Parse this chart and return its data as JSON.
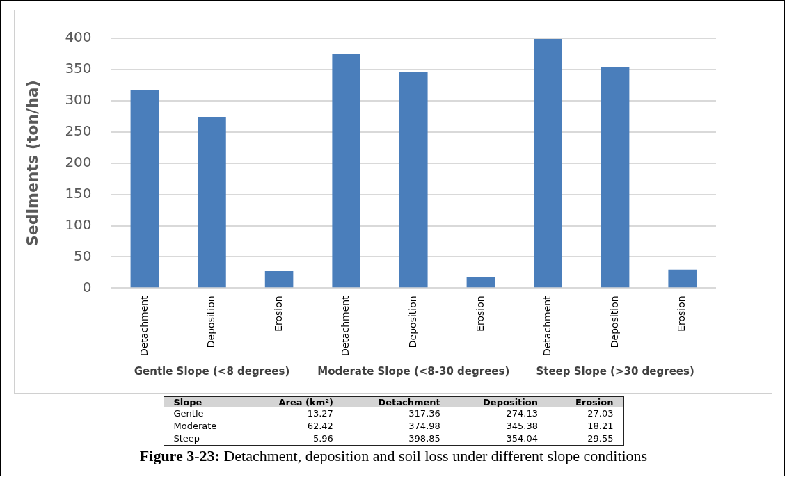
{
  "chart_data": [
    {
      "type": "bar",
      "ylabel": "Sediments (ton/ha)",
      "categories": [
        "Detachment",
        "Deposition",
        "Erosion",
        "Detachment",
        "Deposition",
        "Erosion",
        "Detachment",
        "Deposition",
        "Erosion"
      ],
      "values": [
        317.36,
        274.13,
        27.03,
        374.98,
        345.38,
        18.21,
        398.85,
        354.04,
        29.55
      ],
      "color": "#4a7ebb",
      "ylim": [
        0,
        400
      ],
      "yticks": [
        0,
        50,
        100,
        150,
        200,
        250,
        300,
        350,
        400
      ],
      "grid": "y",
      "legend": false,
      "annotations": [
        "Gentle Slope (<8 degrees)",
        "Moderate Slope (<8-30 degrees)",
        "Steep Slope (>30 degrees)"
      ]
    },
    {
      "type": "other",
      "categories": [
        "Slope",
        "Area (km²)",
        "Detachment",
        "Deposition",
        "Erosion"
      ],
      "annotations": [
        "Gentle",
        "13.27",
        "317.36",
        "274.13",
        "27.03",
        "Moderate",
        "62.42",
        "374.98",
        "345.38",
        "18.21",
        "Steep",
        "5.96",
        "398.85",
        "354.04",
        "29.55",
        "Figure 3-23: Detachment, deposition and soil loss under different slope conditions"
      ]
    }
  ]
}
